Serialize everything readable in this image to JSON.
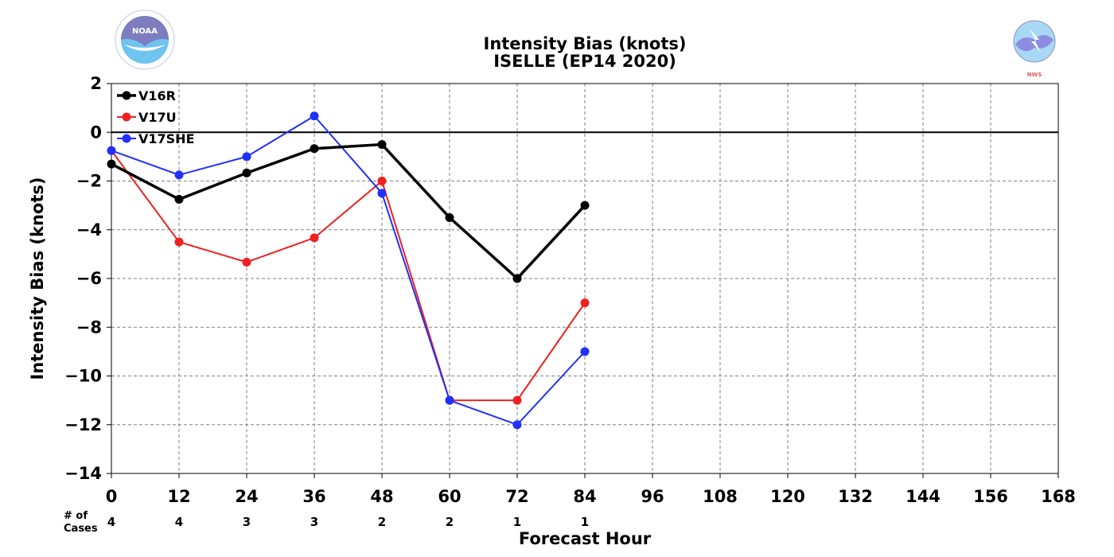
{
  "header": {
    "title_line1": "Intensity Bias (knots)",
    "title_line2": "ISELLE (EP14 2020)",
    "left_logo": "NOAA",
    "right_logo": "NATIONAL WEATHER SERVICE"
  },
  "cases": {
    "label_line1": "# of",
    "label_line2": "Cases",
    "values": [
      "4",
      "4",
      "3",
      "3",
      "2",
      "2",
      "1",
      "1"
    ]
  },
  "chart_data": {
    "type": "line",
    "title": "Intensity Bias (knots)",
    "subtitle": "ISELLE (EP14 2020)",
    "xlabel": "Forecast Hour",
    "ylabel": "Intensity Bias (knots)",
    "xlim": [
      0,
      168
    ],
    "ylim": [
      -14,
      2
    ],
    "x_ticks": [
      0,
      12,
      24,
      36,
      48,
      60,
      72,
      84,
      96,
      108,
      120,
      132,
      144,
      156,
      168
    ],
    "y_ticks": [
      2,
      0,
      -2,
      -4,
      -6,
      -8,
      -10,
      -12,
      -14
    ],
    "y_tick_labels": [
      "2",
      "0",
      "−2",
      "−4",
      "−6",
      "−8",
      "−10",
      "−12",
      "−14"
    ],
    "grid": true,
    "legend_position": "top-left",
    "zero_line": true,
    "x": [
      0,
      12,
      24,
      36,
      48,
      60,
      72,
      84
    ],
    "series": [
      {
        "name": "V16R",
        "color": "#000000",
        "values": [
          -1.3,
          -2.75,
          -1.67,
          -0.67,
          -0.5,
          -3.5,
          -6.0,
          -3.0
        ]
      },
      {
        "name": "V17U",
        "color": "#f02020",
        "values": [
          -0.75,
          -4.5,
          -5.33,
          -4.33,
          -2.0,
          -11.0,
          -11.0,
          -7.0
        ]
      },
      {
        "name": "V17SHE",
        "color": "#2030ff",
        "values": [
          -0.75,
          -1.75,
          -1.0,
          0.67,
          -2.5,
          -11.0,
          -12.0,
          -9.0
        ]
      }
    ]
  }
}
